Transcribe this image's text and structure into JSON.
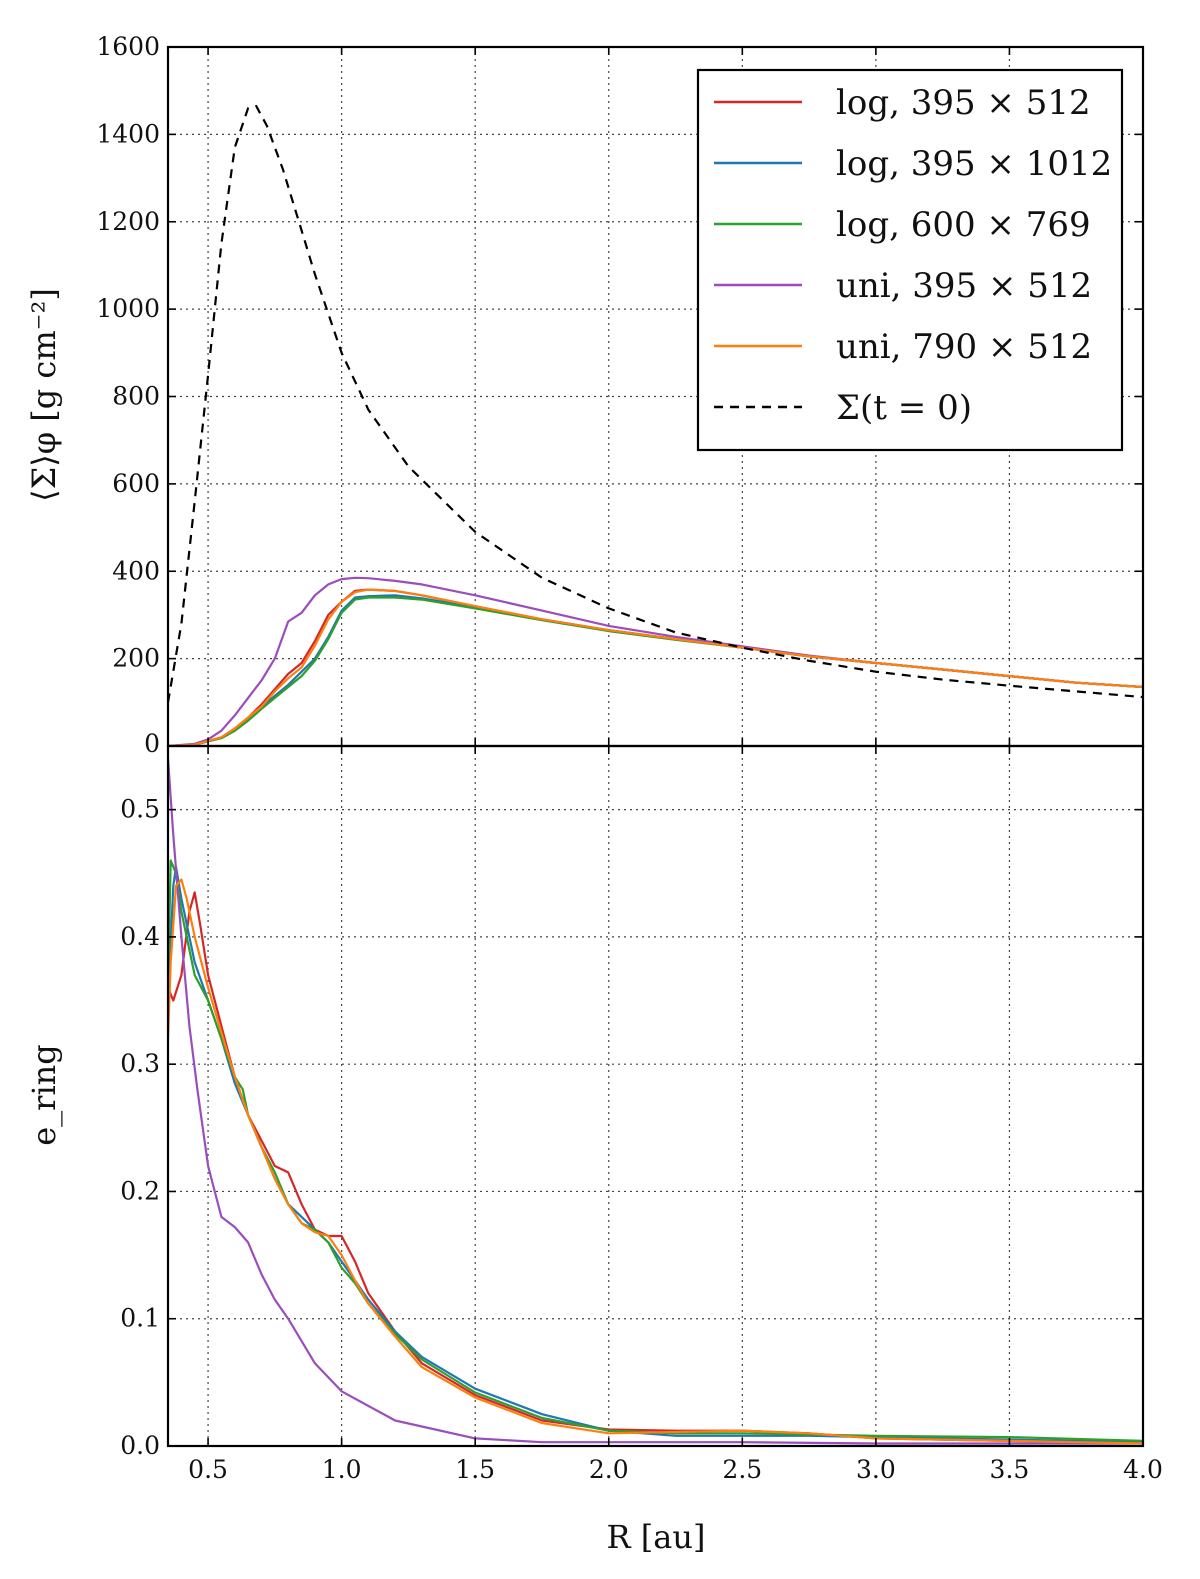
{
  "chart_data": [
    {
      "type": "line",
      "panel": "top",
      "ylabel": "⟨Σ⟩_φ [g cm⁻²]",
      "xlabel": "",
      "xlim": [
        0.35,
        4.0
      ],
      "ylim": [
        0,
        1600
      ],
      "yticks": [
        0,
        200,
        400,
        600,
        800,
        1000,
        1200,
        1400,
        1600
      ],
      "ytick_labels": [
        "0",
        "200",
        "400",
        "600",
        "800",
        "1000",
        "1200",
        "1400",
        "1600"
      ],
      "grid": true,
      "legend_position": "top-right",
      "series": [
        {
          "name": "log, 395 × 512",
          "color": "#d62728",
          "dash": "",
          "x": [
            0.35,
            0.45,
            0.55,
            0.6,
            0.65,
            0.7,
            0.75,
            0.8,
            0.85,
            0.9,
            0.95,
            1.0,
            1.05,
            1.1,
            1.2,
            1.3,
            1.5,
            1.75,
            2.0,
            2.25,
            2.5,
            2.75,
            3.0,
            3.25,
            3.5,
            3.75,
            4.0
          ],
          "y": [
            0,
            3,
            20,
            40,
            65,
            95,
            130,
            165,
            190,
            240,
            300,
            330,
            355,
            358,
            355,
            345,
            320,
            290,
            265,
            245,
            225,
            205,
            190,
            175,
            160,
            145,
            135
          ]
        },
        {
          "name": "log, 395 × 1012",
          "color": "#1f77b4",
          "dash": "",
          "x": [
            0.35,
            0.45,
            0.55,
            0.6,
            0.65,
            0.7,
            0.75,
            0.8,
            0.85,
            0.9,
            0.95,
            1.0,
            1.05,
            1.1,
            1.2,
            1.3,
            1.5,
            1.75,
            2.0,
            2.25,
            2.5,
            2.75,
            3.0,
            3.25,
            3.5,
            3.75,
            4.0
          ],
          "y": [
            0,
            3,
            18,
            35,
            60,
            90,
            115,
            140,
            170,
            200,
            250,
            310,
            340,
            343,
            345,
            338,
            318,
            290,
            265,
            245,
            225,
            205,
            190,
            175,
            160,
            145,
            135
          ]
        },
        {
          "name": "log, 600 × 769",
          "color": "#2ca02c",
          "dash": "",
          "x": [
            0.35,
            0.45,
            0.55,
            0.6,
            0.65,
            0.7,
            0.75,
            0.8,
            0.85,
            0.9,
            0.95,
            1.0,
            1.05,
            1.1,
            1.2,
            1.3,
            1.5,
            1.75,
            2.0,
            2.25,
            2.5,
            2.75,
            3.0,
            3.25,
            3.5,
            3.75,
            4.0
          ],
          "y": [
            0,
            3,
            18,
            35,
            58,
            85,
            110,
            135,
            160,
            195,
            245,
            305,
            335,
            340,
            340,
            335,
            315,
            288,
            263,
            243,
            225,
            205,
            190,
            175,
            160,
            145,
            135
          ]
        },
        {
          "name": "uni, 395 × 512",
          "color": "#9b4dbb",
          "dash": "",
          "x": [
            0.35,
            0.45,
            0.5,
            0.55,
            0.6,
            0.65,
            0.7,
            0.75,
            0.8,
            0.85,
            0.9,
            0.95,
            1.0,
            1.05,
            1.1,
            1.2,
            1.3,
            1.5,
            1.75,
            2.0,
            2.25,
            2.5,
            2.75,
            3.0,
            3.25,
            3.5,
            3.75,
            4.0
          ],
          "y": [
            0,
            5,
            15,
            35,
            70,
            110,
            150,
            200,
            285,
            305,
            345,
            370,
            382,
            385,
            384,
            378,
            370,
            345,
            310,
            275,
            250,
            228,
            207,
            190,
            175,
            160,
            145,
            135
          ]
        },
        {
          "name": "uni, 790 × 512",
          "color": "#ff7f0e",
          "dash": "",
          "x": [
            0.35,
            0.45,
            0.55,
            0.6,
            0.65,
            0.7,
            0.75,
            0.8,
            0.85,
            0.9,
            0.95,
            1.0,
            1.05,
            1.1,
            1.2,
            1.3,
            1.5,
            1.75,
            2.0,
            2.25,
            2.5,
            2.75,
            3.0,
            3.25,
            3.5,
            3.75,
            4.0
          ],
          "y": [
            0,
            3,
            20,
            40,
            65,
            90,
            125,
            155,
            180,
            230,
            290,
            330,
            352,
            358,
            355,
            345,
            320,
            290,
            265,
            245,
            225,
            205,
            190,
            175,
            160,
            145,
            135
          ]
        },
        {
          "name": "Σ(t = 0)",
          "color": "#000000",
          "dash": "9 7",
          "x": [
            0.35,
            0.4,
            0.45,
            0.5,
            0.55,
            0.6,
            0.65,
            0.68,
            0.72,
            0.78,
            0.85,
            0.9,
            1.0,
            1.1,
            1.25,
            1.5,
            1.75,
            2.0,
            2.25,
            2.5,
            2.75,
            3.0,
            3.25,
            3.5,
            3.75,
            4.0
          ],
          "y": [
            100,
            280,
            560,
            850,
            1150,
            1370,
            1460,
            1465,
            1420,
            1320,
            1180,
            1080,
            900,
            770,
            640,
            490,
            385,
            315,
            260,
            225,
            195,
            170,
            152,
            138,
            125,
            112
          ]
        }
      ]
    },
    {
      "type": "line",
      "panel": "bottom",
      "ylabel": "e_ring",
      "xlabel": "R [au]",
      "xlim": [
        0.35,
        4.0
      ],
      "ylim": [
        0,
        0.55
      ],
      "xticks": [
        0.5,
        1.0,
        1.5,
        2.0,
        2.5,
        3.0,
        3.5,
        4.0
      ],
      "xtick_labels": [
        "0.5",
        "1.0",
        "1.5",
        "2.0",
        "2.5",
        "3.0",
        "3.5",
        "4.0"
      ],
      "yticks": [
        0,
        0.1,
        0.2,
        0.3,
        0.4,
        0.5
      ],
      "ytick_labels": [
        "0.0",
        "0.1",
        "0.2",
        "0.3",
        "0.4",
        "0.5"
      ],
      "grid": true,
      "series": [
        {
          "name": "log, 395 × 512",
          "color": "#d62728",
          "x": [
            0.35,
            0.37,
            0.4,
            0.43,
            0.45,
            0.47,
            0.5,
            0.55,
            0.6,
            0.65,
            0.7,
            0.75,
            0.8,
            0.85,
            0.9,
            0.95,
            1.0,
            1.05,
            1.1,
            1.2,
            1.3,
            1.5,
            1.75,
            2.0,
            2.25,
            2.5,
            2.75,
            3.0,
            3.5,
            4.0
          ],
          "y": [
            0.36,
            0.35,
            0.37,
            0.42,
            0.435,
            0.41,
            0.37,
            0.33,
            0.29,
            0.26,
            0.24,
            0.22,
            0.215,
            0.19,
            0.17,
            0.165,
            0.165,
            0.145,
            0.12,
            0.09,
            0.065,
            0.04,
            0.02,
            0.013,
            0.012,
            0.012,
            0.01,
            0.006,
            0.004,
            0.003
          ]
        },
        {
          "name": "log, 395 × 1012",
          "color": "#1f77b4",
          "x": [
            0.35,
            0.37,
            0.38,
            0.4,
            0.45,
            0.5,
            0.55,
            0.6,
            0.65,
            0.7,
            0.75,
            0.8,
            0.85,
            0.9,
            0.95,
            1.0,
            1.05,
            1.1,
            1.2,
            1.3,
            1.5,
            1.75,
            2.0,
            2.25,
            2.5,
            2.75,
            3.0,
            3.5,
            4.0
          ],
          "y": [
            0.35,
            0.44,
            0.455,
            0.43,
            0.38,
            0.35,
            0.32,
            0.285,
            0.26,
            0.235,
            0.21,
            0.19,
            0.18,
            0.17,
            0.16,
            0.145,
            0.13,
            0.115,
            0.09,
            0.07,
            0.045,
            0.025,
            0.012,
            0.008,
            0.008,
            0.008,
            0.007,
            0.005,
            0.003
          ]
        },
        {
          "name": "log, 600 × 769",
          "color": "#2ca02c",
          "x": [
            0.35,
            0.36,
            0.38,
            0.4,
            0.45,
            0.5,
            0.55,
            0.6,
            0.63,
            0.65,
            0.7,
            0.75,
            0.8,
            0.85,
            0.9,
            0.95,
            1.0,
            1.05,
            1.1,
            1.2,
            1.3,
            1.5,
            1.75,
            2.0,
            2.25,
            2.5,
            2.75,
            3.0,
            3.5,
            4.0
          ],
          "y": [
            0.36,
            0.46,
            0.45,
            0.42,
            0.37,
            0.35,
            0.32,
            0.29,
            0.28,
            0.26,
            0.235,
            0.215,
            0.19,
            0.175,
            0.17,
            0.16,
            0.14,
            0.128,
            0.112,
            0.088,
            0.068,
            0.042,
            0.022,
            0.012,
            0.01,
            0.01,
            0.009,
            0.008,
            0.007,
            0.004
          ]
        },
        {
          "name": "uni, 395 × 512",
          "color": "#9b4dbb",
          "x": [
            0.35,
            0.37,
            0.4,
            0.43,
            0.46,
            0.5,
            0.55,
            0.6,
            0.65,
            0.7,
            0.75,
            0.8,
            0.9,
            1.0,
            1.2,
            1.5,
            1.75,
            2.0,
            2.5,
            3.0,
            3.5,
            4.0
          ],
          "y": [
            0.54,
            0.48,
            0.4,
            0.33,
            0.28,
            0.22,
            0.18,
            0.172,
            0.16,
            0.135,
            0.115,
            0.1,
            0.065,
            0.043,
            0.02,
            0.006,
            0.003,
            0.003,
            0.003,
            0.002,
            0.002,
            0.002
          ]
        },
        {
          "name": "uni, 790 × 512",
          "color": "#ff7f0e",
          "x": [
            0.35,
            0.36,
            0.38,
            0.4,
            0.42,
            0.45,
            0.5,
            0.55,
            0.6,
            0.65,
            0.7,
            0.75,
            0.8,
            0.85,
            0.9,
            0.95,
            1.0,
            1.05,
            1.1,
            1.2,
            1.3,
            1.5,
            1.75,
            2.0,
            2.25,
            2.5,
            2.75,
            3.0,
            3.5,
            4.0
          ],
          "y": [
            0.32,
            0.38,
            0.44,
            0.445,
            0.43,
            0.4,
            0.36,
            0.325,
            0.29,
            0.26,
            0.235,
            0.21,
            0.19,
            0.175,
            0.168,
            0.165,
            0.15,
            0.13,
            0.112,
            0.086,
            0.062,
            0.038,
            0.018,
            0.01,
            0.011,
            0.012,
            0.01,
            0.006,
            0.004,
            0.002
          ]
        }
      ]
    }
  ],
  "legend": {
    "entries": [
      {
        "label": "log,  395 × 512",
        "color": "#d62728",
        "dash": ""
      },
      {
        "label": "log,  395 × 1012",
        "color": "#1f77b4",
        "dash": ""
      },
      {
        "label": "log,  600 × 769",
        "color": "#2ca02c",
        "dash": ""
      },
      {
        "label": "uni,  395 × 512",
        "color": "#9b4dbb",
        "dash": ""
      },
      {
        "label": "uni,  790 × 512",
        "color": "#ff7f0e",
        "dash": ""
      },
      {
        "label": "Σ(t = 0)",
        "color": "#000000",
        "dash": "9 7"
      }
    ]
  },
  "labels": {
    "top_ylabel": "⟨Σ⟩φ  [g cm⁻²]",
    "bottom_ylabel": "e_ring",
    "xlabel": "R [au]"
  }
}
